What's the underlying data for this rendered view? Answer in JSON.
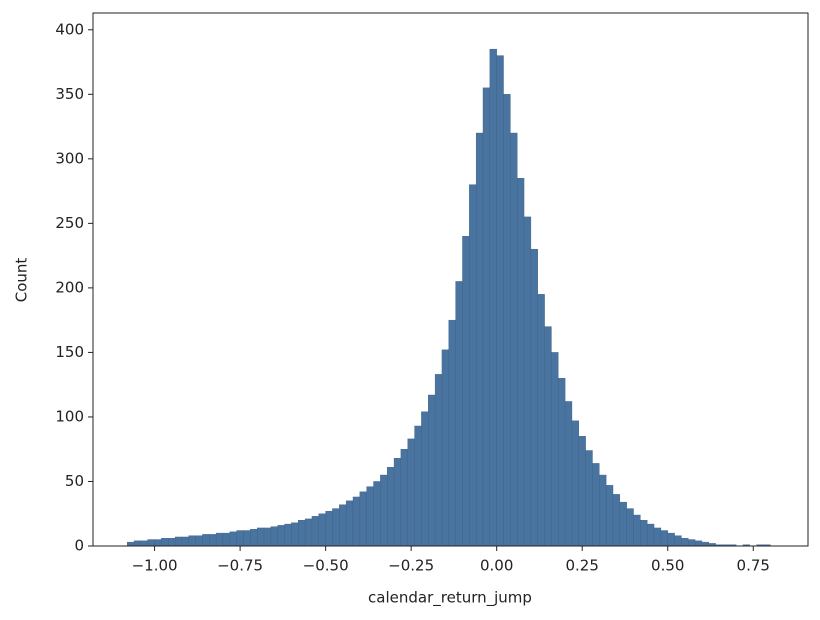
{
  "chart_data": {
    "type": "histogram",
    "x_label": "calendar_return_jump",
    "y_label": "Count",
    "color": "#4a74a0",
    "bins": [
      -1.08,
      -1.06,
      -1.04,
      -1.02,
      -1.0,
      -0.98,
      -0.96,
      -0.94,
      -0.92,
      -0.9,
      -0.88,
      -0.86,
      -0.84,
      -0.82,
      -0.8,
      -0.78,
      -0.76,
      -0.74,
      -0.72,
      -0.7,
      -0.68,
      -0.66,
      -0.64,
      -0.62,
      -0.6,
      -0.58,
      -0.56,
      -0.54,
      -0.52,
      -0.5,
      -0.48,
      -0.46,
      -0.44,
      -0.42,
      -0.4,
      -0.38,
      -0.36,
      -0.34,
      -0.32,
      -0.3,
      -0.28,
      -0.26,
      -0.24,
      -0.22,
      -0.2,
      -0.18,
      -0.16,
      -0.14,
      -0.12,
      -0.1,
      -0.08,
      -0.06,
      -0.04,
      -0.02,
      0.0,
      0.02,
      0.04,
      0.06,
      0.08,
      0.1,
      0.12,
      0.14,
      0.16,
      0.18,
      0.2,
      0.22,
      0.24,
      0.26,
      0.28,
      0.3,
      0.32,
      0.34,
      0.36,
      0.38,
      0.4,
      0.42,
      0.44,
      0.46,
      0.48,
      0.5,
      0.52,
      0.54,
      0.56,
      0.58,
      0.6,
      0.62,
      0.64,
      0.66,
      0.68,
      0.7,
      0.72,
      0.74,
      0.76,
      0.78,
      0.8
    ],
    "values": [
      3,
      4,
      4,
      5,
      5,
      6,
      6,
      7,
      7,
      8,
      8,
      9,
      9,
      10,
      10,
      11,
      12,
      12,
      13,
      14,
      14,
      15,
      16,
      17,
      18,
      20,
      21,
      23,
      25,
      27,
      29,
      32,
      35,
      38,
      42,
      46,
      50,
      55,
      61,
      68,
      75,
      83,
      93,
      104,
      117,
      133,
      152,
      175,
      205,
      240,
      280,
      320,
      355,
      385,
      380,
      350,
      320,
      285,
      255,
      230,
      195,
      170,
      150,
      130,
      112,
      97,
      85,
      74,
      64,
      55,
      47,
      40,
      34,
      29,
      24,
      20,
      17,
      14,
      12,
      10,
      8,
      6,
      5,
      4,
      3,
      2,
      1,
      1,
      1,
      0,
      1,
      0,
      1,
      1
    ],
    "xlim": [
      -1.18,
      0.91
    ],
    "ylim": [
      0,
      413
    ],
    "xticks": [
      {
        "value": -1.0,
        "label": "−1.00"
      },
      {
        "value": -0.75,
        "label": "−0.75"
      },
      {
        "value": -0.5,
        "label": "−0.50"
      },
      {
        "value": -0.25,
        "label": "−0.25"
      },
      {
        "value": 0,
        "label": "0.00"
      },
      {
        "value": 0.25,
        "label": "0.25"
      },
      {
        "value": 0.5,
        "label": "0.50"
      },
      {
        "value": 0.75,
        "label": "0.75"
      }
    ],
    "yticks": [
      0,
      50,
      100,
      150,
      200,
      250,
      300,
      350,
      400
    ]
  }
}
